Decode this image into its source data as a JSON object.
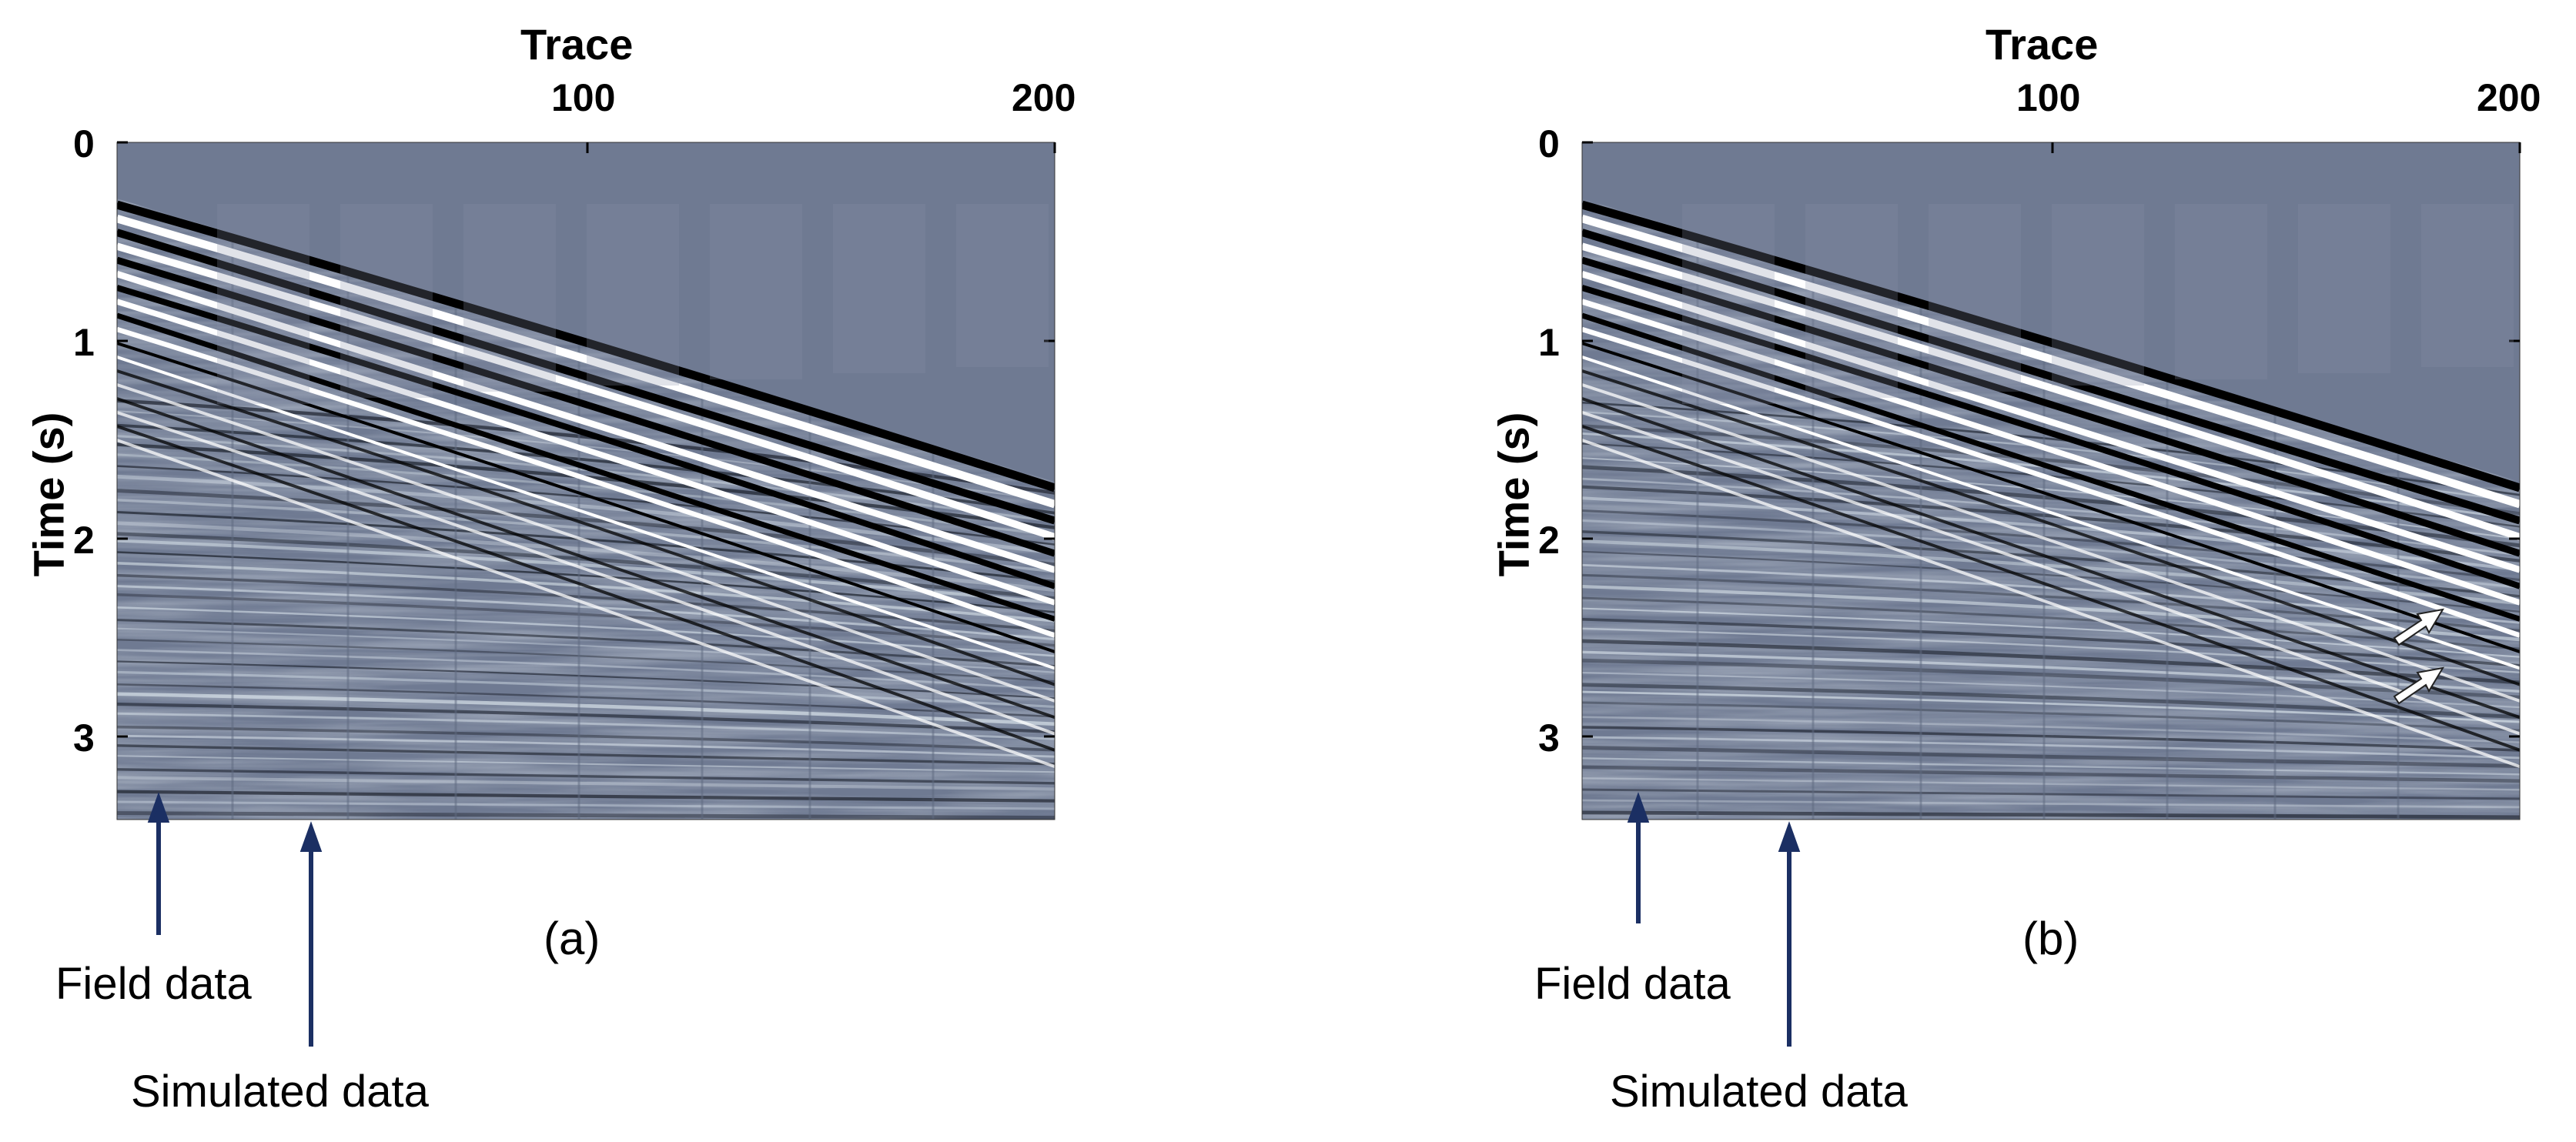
{
  "panels": [
    {
      "caption": "(a)",
      "x_axis_title": "Trace",
      "y_axis_title": "Time (s)",
      "x_ticks": [
        "100",
        "200"
      ],
      "y_ticks": [
        "0",
        "1",
        "2",
        "3"
      ],
      "annotations": [
        "Field data",
        "Simulated data"
      ],
      "has_white_arrows": false
    },
    {
      "caption": "(b)",
      "x_axis_title": "Trace",
      "y_axis_title": "Time (s)",
      "x_ticks": [
        "100",
        "200"
      ],
      "y_ticks": [
        "0",
        "1",
        "2",
        "3"
      ],
      "annotations": [
        "Field data",
        "Simulated data"
      ],
      "has_white_arrows": true
    }
  ],
  "colors": {
    "background_gray": "#6f7a92",
    "arrow_blue": "#1b2f63",
    "event_black": "#000000",
    "event_white": "#ffffff"
  }
}
